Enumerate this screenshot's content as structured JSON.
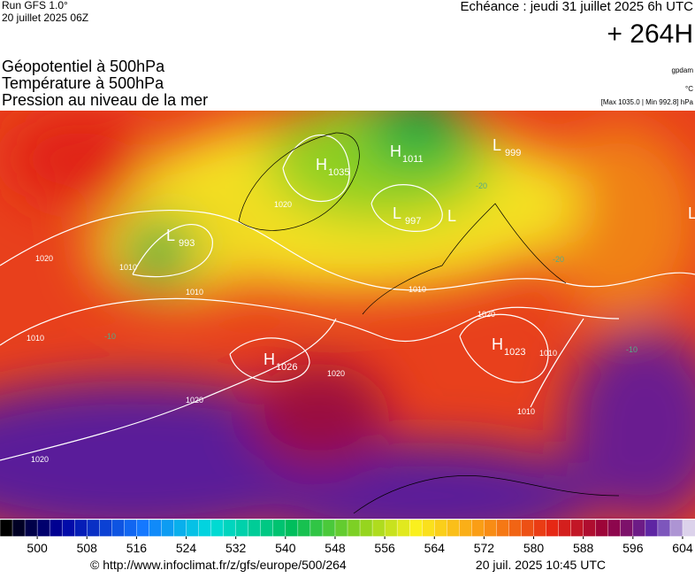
{
  "header": {
    "run": "Run GFS 1.0°",
    "date": "20 juillet 2025 06Z",
    "echeance": "Echéance : jeudi 31 juillet 2025 6h UTC",
    "lead": "+ 264H"
  },
  "titles": [
    "Géopotentiel à 500hPa",
    "Température à 500hPa",
    "Pression au niveau de la mer"
  ],
  "units": [
    "gpdam",
    "°C",
    "[Max 1035.0 | Min 992.8] hPa"
  ],
  "centers": [
    {
      "letter": "L",
      "value": "993"
    },
    {
      "letter": "H",
      "value": "1035"
    },
    {
      "letter": "H",
      "value": "1011"
    },
    {
      "letter": "L",
      "value": "999"
    },
    {
      "letter": "L",
      "value": "997"
    },
    {
      "letter": "L"
    },
    {
      "letter": "L"
    },
    {
      "letter": "H",
      "value": "1026"
    },
    {
      "letter": "H",
      "value": "1023"
    }
  ],
  "isobar_labels": [
    "1020",
    "1010",
    "1020",
    "1010",
    "1010",
    "1010",
    "1020",
    "1020",
    "1020",
    "1020",
    "1010",
    "1010"
  ],
  "temp_labels": [
    "-20",
    "-20",
    "-10",
    "-10"
  ],
  "colorbar": {
    "lim": [
      494,
      606
    ],
    "ticks": [
      500,
      508,
      516,
      524,
      532,
      540,
      548,
      556,
      564,
      572,
      580,
      588,
      596,
      604
    ]
  },
  "footer": {
    "url": "© http://www.infoclimat.fr/z/gfs/europe/500/264",
    "issued": "20 juil. 2025 10:45 UTC"
  }
}
